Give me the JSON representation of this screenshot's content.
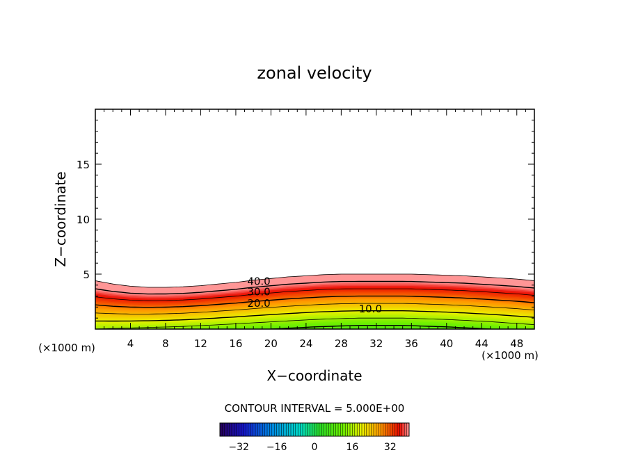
{
  "chart_data": {
    "type": "contour",
    "title": "zonal velocity",
    "xlabel": "X−coordinate",
    "ylabel": "Z−coordinate",
    "x_unit": "(×1000 m)",
    "z_unit": "(×1000 m)",
    "xlim": [
      0,
      50
    ],
    "ylim": [
      0,
      20
    ],
    "x_ticks": [
      4,
      8,
      12,
      16,
      20,
      24,
      28,
      32,
      36,
      40,
      44,
      48
    ],
    "y_ticks": [
      5,
      10,
      15
    ],
    "contour_interval_text": "CONTOUR INTERVAL = 5.000E+00",
    "contour_interval": 5.0,
    "field": {
      "surface_height_x": [
        0,
        2,
        4,
        6,
        8,
        10,
        12,
        14,
        16,
        18,
        20,
        22,
        24,
        26,
        28,
        30,
        32,
        34,
        36,
        38,
        40,
        42,
        44,
        46,
        48,
        50
      ],
      "surface_height_z": [
        4.4,
        4.1,
        3.9,
        3.8,
        3.8,
        3.85,
        3.95,
        4.1,
        4.25,
        4.45,
        4.6,
        4.75,
        4.85,
        4.95,
        5.0,
        5.0,
        5.0,
        5.0,
        5.0,
        4.95,
        4.9,
        4.85,
        4.75,
        4.65,
        4.55,
        4.4
      ],
      "value_at_top": 45,
      "value_at_bottom_x": [
        0,
        5,
        10,
        15,
        20,
        25,
        30,
        35,
        40,
        45,
        50
      ],
      "value_at_bottom": [
        15,
        14,
        13,
        11.5,
        10,
        8.5,
        7.5,
        7.5,
        8.5,
        10,
        12
      ]
    },
    "contour_labels": [
      {
        "text": "40.0",
        "x": 17.3,
        "z": 4.4
      },
      {
        "text": "30.0",
        "x": 17.3,
        "z": 3.45
      },
      {
        "text": "20.0",
        "x": 17.3,
        "z": 2.4
      },
      {
        "text": "10.0",
        "x": 30.0,
        "z": 1.9
      }
    ],
    "colorbar": {
      "min": -40,
      "max": 40,
      "tick_labels": [
        "−32",
        "−16",
        "0",
        "16",
        "32"
      ],
      "tick_values": [
        -32,
        -16,
        0,
        16,
        32
      ]
    }
  }
}
